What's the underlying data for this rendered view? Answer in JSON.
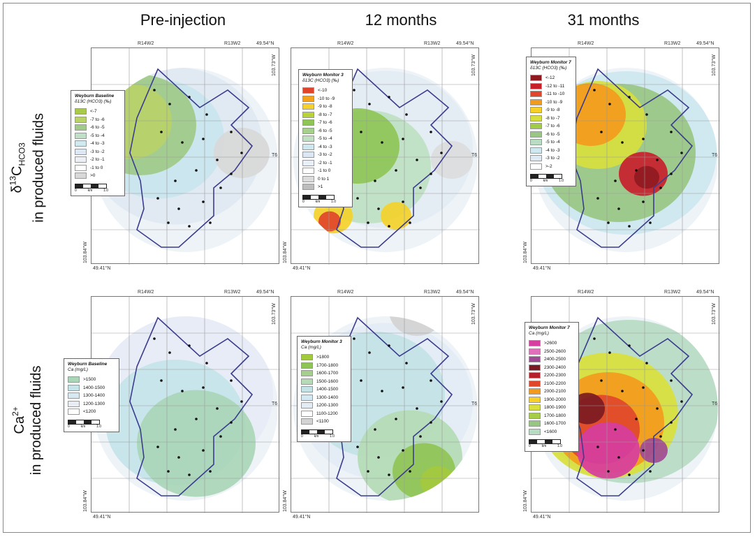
{
  "columns": [
    "Pre-injection",
    "12 months",
    "31 months"
  ],
  "rows": [
    {
      "label_main": "δ",
      "label_sup": "13",
      "label_base": "C",
      "label_sub": "HCO3",
      "label_second": "in produced fluids"
    },
    {
      "label_main": "Ca",
      "label_sup": "2+",
      "label_base": "",
      "label_sub": "",
      "label_second": "in produced fluids"
    }
  ],
  "map_labels": {
    "range_left": "R14W2",
    "range_right": "R13W2",
    "lat_top": "49.54°N",
    "lon_right": "103.73°W",
    "township": "T6",
    "lon_left": "103.84°W",
    "lat_bottom": "49.41°N"
  },
  "legends": [
    {
      "title": "Weyburn Baseline",
      "subtitle": "δ13C (HCO3) (‰)",
      "scale_km": [
        "0",
        "1.0"
      ],
      "scale_unit": "km",
      "items": [
        {
          "label": "<-7",
          "color": "#a8c94a"
        },
        {
          "label": "-7 to -6",
          "color": "#b9d36a"
        },
        {
          "label": "-6 to -5",
          "color": "#9fca88"
        },
        {
          "label": "-5 to -4",
          "color": "#bfe0c6"
        },
        {
          "label": "-4 to -3",
          "color": "#cfe9ef"
        },
        {
          "label": "-3 to -2",
          "color": "#dde8f2"
        },
        {
          "label": "-2 to -1",
          "color": "#ecf0f6"
        },
        {
          "label": "-1 to 0",
          "color": "#ffffff"
        },
        {
          "label": ">0",
          "color": "#d8d8d8"
        }
      ]
    },
    {
      "title": "Weyburn Monitor 3",
      "subtitle": "δ13C (HCO3) (‰)",
      "scale_km": [
        "0",
        "1.0"
      ],
      "scale_unit": "km",
      "items": [
        {
          "label": "<-10",
          "color": "#e0452a"
        },
        {
          "label": "-10 to -9",
          "color": "#f2a21b"
        },
        {
          "label": "-9 to -8",
          "color": "#f4d22a"
        },
        {
          "label": "-8 to -7",
          "color": "#b8d33a"
        },
        {
          "label": "-7 to -6",
          "color": "#8fc456"
        },
        {
          "label": "-6 to -5",
          "color": "#a7d08e"
        },
        {
          "label": "-5 to -4",
          "color": "#bfe1c2"
        },
        {
          "label": "-4 to -3",
          "color": "#cde8ef"
        },
        {
          "label": "-3 to -2",
          "color": "#dbe8f3"
        },
        {
          "label": "-2 to -1",
          "color": "#eaf0f7"
        },
        {
          "label": "-1 to 0",
          "color": "#ffffff"
        },
        {
          "label": "0 to 1",
          "color": "#dcdcdc"
        },
        {
          "label": ">1",
          "color": "#bdbdbd"
        }
      ]
    },
    {
      "title": "Weyburn Monitor 7",
      "subtitle": "δ13C (HCO3) (‰)",
      "scale_km": [
        "0",
        "1.0"
      ],
      "scale_unit": "km",
      "items": [
        {
          "label": "<-12",
          "color": "#8e1a1f"
        },
        {
          "label": "-12 to -11",
          "color": "#c8202b"
        },
        {
          "label": "-11 to -10",
          "color": "#e2462a"
        },
        {
          "label": "-10 to -9",
          "color": "#f39a1d"
        },
        {
          "label": "-9 to -8",
          "color": "#f6cf29"
        },
        {
          "label": "-8 to -7",
          "color": "#d7df3e"
        },
        {
          "label": "-7 to -6",
          "color": "#a3cb4a"
        },
        {
          "label": "-6 to -5",
          "color": "#98c783"
        },
        {
          "label": "-5 to -4",
          "color": "#b8ddc2"
        },
        {
          "label": "-4 to -3",
          "color": "#cde8ef"
        },
        {
          "label": "-3 to -2",
          "color": "#dde9f3"
        },
        {
          "label": ">-2",
          "color": "#ffffff"
        }
      ]
    },
    {
      "title": "Weyburn Baseline",
      "subtitle": "Ca (mg/L)",
      "scale_km": [
        "0",
        "1.0"
      ],
      "scale_unit": "km",
      "items": [
        {
          "label": ">1500",
          "color": "#a9d6b7"
        },
        {
          "label": "1400-1500",
          "color": "#c4e4e9"
        },
        {
          "label": "1300-1400",
          "color": "#d6e8f2"
        },
        {
          "label": "1200-1300",
          "color": "#e7ecf5"
        },
        {
          "label": "<1200",
          "color": "#ffffff"
        }
      ]
    },
    {
      "title": "Weyburn Monitor 3",
      "subtitle": "Ca (mg/L)",
      "scale_km": [
        "0",
        "1.0"
      ],
      "scale_unit": "km",
      "items": [
        {
          "label": ">1800",
          "color": "#a3c93d"
        },
        {
          "label": "1700-1800",
          "color": "#8fc456"
        },
        {
          "label": "1600-1700",
          "color": "#a4cf8c"
        },
        {
          "label": "1500-1600",
          "color": "#b4dbb4"
        },
        {
          "label": "1400-1500",
          "color": "#c3e3e6"
        },
        {
          "label": "1300-1400",
          "color": "#d4e8f2"
        },
        {
          "label": "1200-1300",
          "color": "#e3ebf5"
        },
        {
          "label": "1100-1200",
          "color": "#ffffff"
        },
        {
          "label": "<1100",
          "color": "#d3d3d3"
        }
      ]
    },
    {
      "title": "Weyburn Monitor 7",
      "subtitle": "Ca (mg/L)",
      "scale_km": [
        "0",
        "1.0"
      ],
      "scale_unit": "km",
      "items": [
        {
          "label": ">2600",
          "color": "#d63ea0"
        },
        {
          "label": "2500-2600",
          "color": "#e070b9"
        },
        {
          "label": "2400-2500",
          "color": "#a04a95"
        },
        {
          "label": "2300-2400",
          "color": "#7b1a22"
        },
        {
          "label": "2200-2300",
          "color": "#b5212b"
        },
        {
          "label": "2100-2200",
          "color": "#e0462a"
        },
        {
          "label": "2000-2100",
          "color": "#f39a1d"
        },
        {
          "label": "1900-2000",
          "color": "#f6cf29"
        },
        {
          "label": "1800-1900",
          "color": "#d9df3c"
        },
        {
          "label": "1700-1800",
          "color": "#a6cc48"
        },
        {
          "label": "1600-1700",
          "color": "#96c67f"
        },
        {
          "label": "<1600",
          "color": "#b7dcc3"
        }
      ]
    }
  ]
}
